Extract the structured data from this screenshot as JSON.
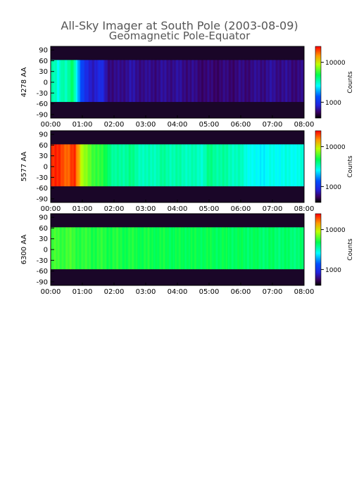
{
  "title": "All-Sky Imager at South Pole (2003-08-09)",
  "subtitle": "Geomagnetic Pole-Equator",
  "chart_data": [
    {
      "type": "heatmap",
      "ylabel": "4278 AA",
      "x_ticks": [
        "00:00",
        "01:00",
        "02:00",
        "03:00",
        "04:00",
        "05:00",
        "06:00",
        "07:00",
        "08:00"
      ],
      "xlim": [
        "00:00",
        "08:00"
      ],
      "y_ticks": [
        90,
        60,
        30,
        0,
        -30,
        -60,
        -90
      ],
      "ylim": [
        -100,
        100
      ],
      "data_band": [
        -55,
        62
      ],
      "colorbar": {
        "label": "Counts",
        "scale": "log",
        "ticks": [
          10000,
          1000
        ],
        "tick_labels": [
          "10000",
          "1000"
        ]
      },
      "profile": [
        [
          0.0,
          0.52
        ],
        [
          0.15,
          0.5
        ],
        [
          0.25,
          0.45
        ],
        [
          0.35,
          0.55
        ],
        [
          0.5,
          0.5
        ],
        [
          0.7,
          0.58
        ],
        [
          0.85,
          0.42
        ],
        [
          0.95,
          0.3
        ],
        [
          1.1,
          0.2
        ],
        [
          1.3,
          0.16
        ],
        [
          1.6,
          0.2
        ],
        [
          1.8,
          0.12
        ],
        [
          2.0,
          0.1
        ],
        [
          2.5,
          0.13
        ],
        [
          3.0,
          0.11
        ],
        [
          4.0,
          0.12
        ],
        [
          5.0,
          0.09
        ],
        [
          6.0,
          0.1
        ],
        [
          7.0,
          0.12
        ],
        [
          8.0,
          0.1
        ]
      ]
    },
    {
      "type": "heatmap",
      "ylabel": "5577 AA",
      "x_ticks": [
        "00:00",
        "01:00",
        "02:00",
        "03:00",
        "04:00",
        "05:00",
        "06:00",
        "07:00",
        "08:00"
      ],
      "xlim": [
        "00:00",
        "08:00"
      ],
      "y_ticks": [
        90,
        60,
        30,
        0,
        -30,
        -60,
        -90
      ],
      "ylim": [
        -100,
        100
      ],
      "data_band": [
        -55,
        62
      ],
      "colorbar": {
        "label": "Counts",
        "scale": "log",
        "ticks": [
          10000,
          1000
        ],
        "tick_labels": [
          "10000",
          "1000"
        ]
      },
      "profile": [
        [
          0.0,
          0.95
        ],
        [
          0.3,
          0.97
        ],
        [
          0.55,
          0.9
        ],
        [
          0.75,
          0.97
        ],
        [
          0.9,
          0.85
        ],
        [
          1.0,
          0.72
        ],
        [
          1.2,
          0.68
        ],
        [
          1.4,
          0.65
        ],
        [
          1.6,
          0.62
        ],
        [
          1.8,
          0.6
        ],
        [
          2.0,
          0.52
        ],
        [
          2.5,
          0.55
        ],
        [
          3.0,
          0.5
        ],
        [
          3.5,
          0.53
        ],
        [
          4.0,
          0.52
        ],
        [
          4.8,
          0.5
        ],
        [
          5.0,
          0.55
        ],
        [
          6.0,
          0.5
        ],
        [
          6.5,
          0.44
        ],
        [
          7.0,
          0.46
        ],
        [
          8.0,
          0.47
        ]
      ]
    },
    {
      "type": "heatmap",
      "ylabel": "6300 AA",
      "x_ticks": [
        "00:00",
        "01:00",
        "02:00",
        "03:00",
        "04:00",
        "05:00",
        "06:00",
        "07:00",
        "08:00"
      ],
      "xlim": [
        "00:00",
        "08:00"
      ],
      "y_ticks": [
        90,
        60,
        30,
        0,
        -30,
        -60,
        -90
      ],
      "ylim": [
        -100,
        100
      ],
      "data_band": [
        -55,
        62
      ],
      "colorbar": {
        "label": "Counts",
        "scale": "log",
        "ticks": [
          10000,
          1000
        ],
        "tick_labels": [
          "10000",
          "1000"
        ]
      },
      "profile": [
        [
          0.0,
          0.64
        ],
        [
          0.5,
          0.65
        ],
        [
          1.0,
          0.63
        ],
        [
          2.0,
          0.62
        ],
        [
          3.0,
          0.61
        ],
        [
          4.0,
          0.6
        ],
        [
          5.0,
          0.6
        ],
        [
          6.0,
          0.59
        ],
        [
          7.0,
          0.58
        ],
        [
          8.0,
          0.57
        ]
      ]
    }
  ]
}
